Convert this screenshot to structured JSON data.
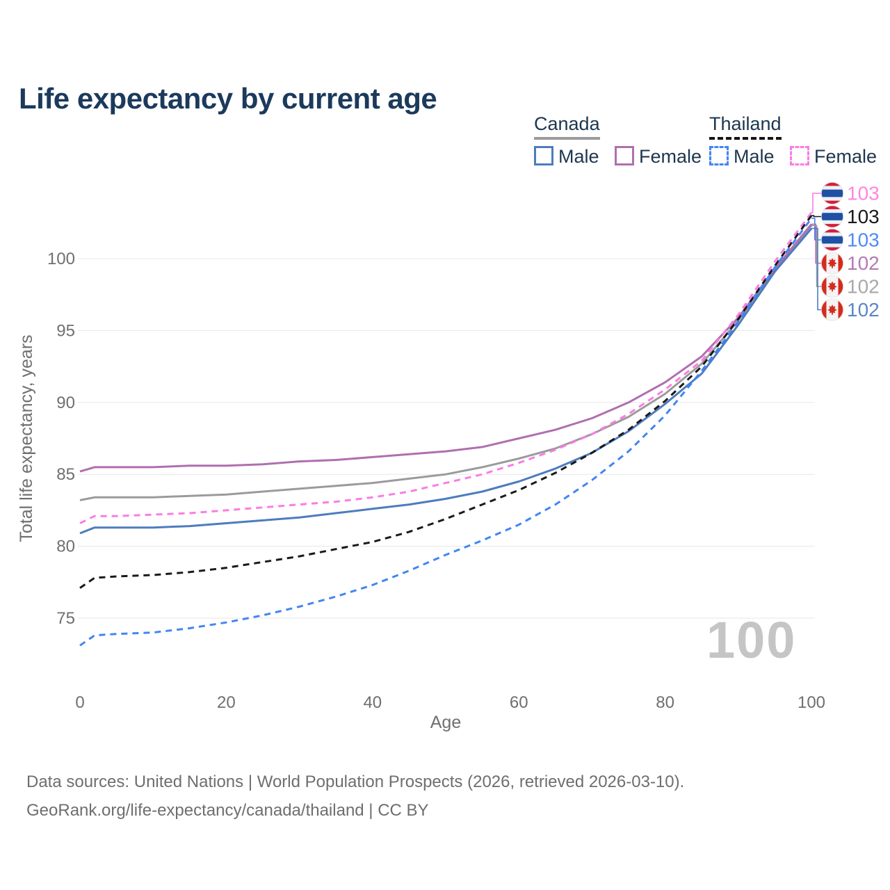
{
  "title": "Life expectancy by current age",
  "legend": {
    "canada": {
      "label": "Canada",
      "male": "Male",
      "female": "Female"
    },
    "thailand": {
      "label": "Thailand",
      "male": "Male",
      "female": "Female"
    }
  },
  "watermark": "100",
  "footer": {
    "line1": "Data sources: United Nations | World Population Prospects (2026, retrieved 2026-03-10).",
    "line2": "GeoRank.org/life-expectancy/canada/thailand | CC BY"
  },
  "chart_data": {
    "type": "line",
    "title": "Life expectancy by current age",
    "xlabel": "Age",
    "ylabel": "Total life expectancy, years",
    "xlim": [
      0,
      100
    ],
    "ylim": [
      71.5,
      106
    ],
    "x_ticks": [
      0,
      20,
      40,
      60,
      80,
      100
    ],
    "y_ticks": [
      75,
      80,
      85,
      90,
      95,
      100
    ],
    "grid": "horizontal-only",
    "legend_position": "top-right",
    "x": [
      0,
      2,
      5,
      10,
      15,
      20,
      25,
      30,
      35,
      40,
      45,
      50,
      55,
      60,
      65,
      70,
      75,
      80,
      85,
      90,
      95,
      100
    ],
    "series": [
      {
        "id": "canada_total",
        "name": "Canada (both sexes)",
        "country": "canada",
        "style": "solid",
        "color": "#9b9b9b",
        "values": [
          83.2,
          83.4,
          83.4,
          83.4,
          83.5,
          83.6,
          83.8,
          84.0,
          84.2,
          84.4,
          84.7,
          85.0,
          85.5,
          86.1,
          86.8,
          87.8,
          89.0,
          90.6,
          92.7,
          95.7,
          99.2,
          102.3
        ]
      },
      {
        "id": "canada_female",
        "name": "Canada Female",
        "country": "canada",
        "style": "solid",
        "color": "#b06fae",
        "values": [
          85.2,
          85.5,
          85.5,
          85.5,
          85.6,
          85.6,
          85.7,
          85.9,
          86.0,
          86.2,
          86.4,
          86.6,
          86.9,
          87.5,
          88.1,
          88.9,
          90.0,
          91.4,
          93.2,
          95.9,
          99.3,
          102.4
        ]
      },
      {
        "id": "canada_male",
        "name": "Canada Male",
        "country": "canada",
        "style": "solid",
        "color": "#4d7cbe",
        "values": [
          80.9,
          81.3,
          81.3,
          81.3,
          81.4,
          81.6,
          81.8,
          82.0,
          82.3,
          82.6,
          82.9,
          83.3,
          83.8,
          84.5,
          85.4,
          86.5,
          88.0,
          89.9,
          92.0,
          95.4,
          99.1,
          102.1
        ]
      },
      {
        "id": "thailand_female",
        "name": "Thailand Female",
        "country": "thailand",
        "style": "dashed",
        "color": "#fb7ce4",
        "values": [
          81.6,
          82.1,
          82.1,
          82.2,
          82.3,
          82.5,
          82.7,
          82.9,
          83.1,
          83.4,
          83.8,
          84.4,
          85.0,
          85.8,
          86.7,
          87.8,
          89.2,
          90.9,
          92.9,
          96.1,
          99.8,
          103.2
        ]
      },
      {
        "id": "thailand_total",
        "name": "Thailand (both sexes)",
        "country": "thailand",
        "style": "dashed",
        "color": "#1a1a1a",
        "values": [
          77.1,
          77.8,
          77.9,
          78.0,
          78.2,
          78.5,
          78.9,
          79.3,
          79.8,
          80.3,
          81.0,
          81.9,
          82.9,
          83.9,
          85.1,
          86.5,
          88.1,
          90.1,
          92.5,
          95.8,
          99.5,
          103.0
        ]
      },
      {
        "id": "thailand_male",
        "name": "Thailand Male",
        "country": "thailand",
        "style": "dashed",
        "color": "#4285f4",
        "values": [
          73.1,
          73.8,
          73.9,
          74.0,
          74.3,
          74.7,
          75.2,
          75.8,
          76.5,
          77.3,
          78.3,
          79.4,
          80.4,
          81.5,
          82.9,
          84.6,
          86.6,
          89.1,
          92.2,
          95.6,
          99.4,
          102.8
        ]
      }
    ],
    "end_labels": [
      {
        "series": "thailand_female",
        "text": "103",
        "color": "#ff85e3",
        "flag": "thailand"
      },
      {
        "series": "thailand_total",
        "text": "103",
        "color": "#1a1a1a",
        "flag": "thailand"
      },
      {
        "series": "thailand_male",
        "text": "103",
        "color": "#4f8bf5",
        "flag": "thailand"
      },
      {
        "series": "canada_female",
        "text": "102",
        "color": "#b37ab3",
        "flag": "canada"
      },
      {
        "series": "canada_total",
        "text": "102",
        "color": "#a8a8a8",
        "flag": "canada"
      },
      {
        "series": "canada_male",
        "text": "102",
        "color": "#5b85c8",
        "flag": "canada"
      }
    ],
    "flag_colors": {
      "thailand": {
        "red": "#d21f3c",
        "white": "#eef0f4",
        "blue": "#1e50a5"
      },
      "canada": {
        "red": "#d52b1e",
        "white": "#f4f4f6"
      }
    },
    "grid_color": "#e7e7e7",
    "tick_color": "#6f6f6f",
    "watermark_color": "#c5c5c5"
  }
}
